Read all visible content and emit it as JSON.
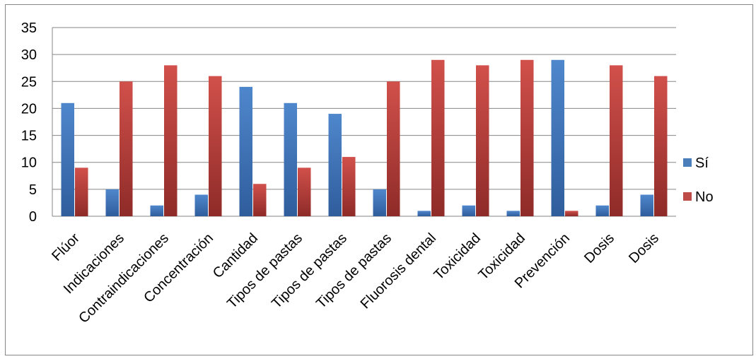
{
  "chart_data": {
    "type": "bar",
    "categories": [
      "Flúor",
      "Indicaciones",
      "Contraindicaciones",
      "Concentración",
      "Cantidad",
      "Tipos de pastas",
      "Tipos de pastas",
      "Tipos de pastas",
      "Fluorosis dental",
      "Toxicidad",
      "Toxicidad",
      "Prevención",
      "Dosis",
      "Dosis"
    ],
    "series": [
      {
        "name": "Sí",
        "values": [
          21,
          5,
          2,
          4,
          24,
          21,
          19,
          5,
          1,
          2,
          1,
          29,
          2,
          4
        ],
        "color": "#4a7ebb"
      },
      {
        "name": "No",
        "values": [
          9,
          25,
          28,
          26,
          6,
          9,
          11,
          25,
          29,
          28,
          29,
          1,
          28,
          26
        ],
        "color": "#be4b48"
      }
    ],
    "title": "",
    "xlabel": "",
    "ylabel": "",
    "ylim": [
      0,
      35
    ],
    "yticks": [
      0,
      5,
      10,
      15,
      20,
      25,
      30,
      35
    ],
    "grid": true,
    "legend": "right"
  }
}
